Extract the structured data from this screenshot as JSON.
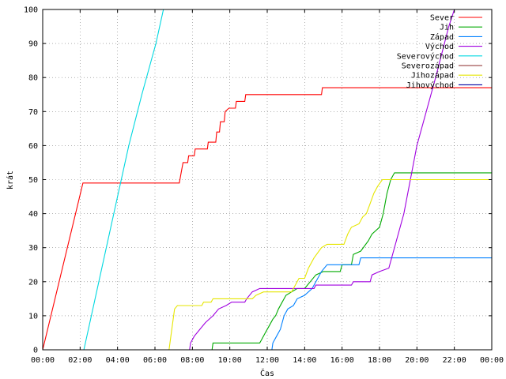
{
  "chart_data": {
    "type": "line",
    "title": "",
    "xlabel": "Čas",
    "ylabel": "krát",
    "x_ticks": [
      "00:00",
      "02:00",
      "04:00",
      "06:00",
      "08:00",
      "10:00",
      "12:00",
      "14:00",
      "16:00",
      "18:00",
      "20:00",
      "22:00",
      "00:00"
    ],
    "y_ticks": [
      "0",
      "10",
      "20",
      "30",
      "40",
      "50",
      "60",
      "70",
      "80",
      "90",
      "100"
    ],
    "xlim_hours": [
      0,
      24
    ],
    "ylim": [
      0,
      100
    ],
    "grid": true,
    "legend_position": "top-right",
    "series": [
      {
        "name": "Sever",
        "color": "#ff0000",
        "points": [
          [
            0,
            0
          ],
          [
            2.15,
            49
          ],
          [
            7.3,
            49
          ],
          [
            7.4,
            52
          ],
          [
            7.5,
            55
          ],
          [
            7.75,
            55
          ],
          [
            7.8,
            57
          ],
          [
            8.1,
            57
          ],
          [
            8.15,
            59
          ],
          [
            8.8,
            59
          ],
          [
            8.85,
            61
          ],
          [
            9.25,
            61
          ],
          [
            9.3,
            64
          ],
          [
            9.45,
            64
          ],
          [
            9.5,
            67
          ],
          [
            9.7,
            67
          ],
          [
            9.75,
            70
          ],
          [
            9.95,
            71
          ],
          [
            10.3,
            71
          ],
          [
            10.35,
            73
          ],
          [
            10.8,
            73
          ],
          [
            10.85,
            75
          ],
          [
            14.9,
            75
          ],
          [
            14.95,
            77
          ],
          [
            24,
            77
          ]
        ]
      },
      {
        "name": "Jih",
        "color": "#00aa00",
        "points": [
          [
            0,
            0
          ],
          [
            9.05,
            0
          ],
          [
            9.1,
            2
          ],
          [
            11.6,
            2
          ],
          [
            11.7,
            3
          ],
          [
            11.9,
            5
          ],
          [
            12.1,
            7
          ],
          [
            12.3,
            9
          ],
          [
            12.45,
            10
          ],
          [
            12.6,
            12
          ],
          [
            12.8,
            14
          ],
          [
            13.0,
            16
          ],
          [
            13.3,
            17
          ],
          [
            13.6,
            18
          ],
          [
            14.0,
            18
          ],
          [
            14.3,
            20
          ],
          [
            14.6,
            22
          ],
          [
            15.0,
            23
          ],
          [
            15.9,
            23
          ],
          [
            16.0,
            25
          ],
          [
            16.5,
            25
          ],
          [
            16.6,
            28
          ],
          [
            17.0,
            29
          ],
          [
            17.4,
            32
          ],
          [
            17.6,
            34
          ],
          [
            18.0,
            36
          ],
          [
            18.2,
            40
          ],
          [
            18.4,
            46
          ],
          [
            18.6,
            50
          ],
          [
            18.8,
            52
          ],
          [
            24,
            52
          ]
        ]
      },
      {
        "name": "Západ",
        "color": "#0080ff",
        "points": [
          [
            0,
            0
          ],
          [
            12.25,
            0
          ],
          [
            12.3,
            2
          ],
          [
            12.5,
            4
          ],
          [
            12.7,
            6
          ],
          [
            12.9,
            10
          ],
          [
            13.1,
            12
          ],
          [
            13.4,
            13
          ],
          [
            13.6,
            15
          ],
          [
            14.0,
            16
          ],
          [
            14.4,
            18
          ],
          [
            14.7,
            21
          ],
          [
            14.9,
            23
          ],
          [
            15.2,
            25
          ],
          [
            16.9,
            25
          ],
          [
            17.0,
            27
          ],
          [
            24,
            27
          ]
        ]
      },
      {
        "name": "Východ",
        "color": "#a000e0",
        "points": [
          [
            0,
            0
          ],
          [
            7.85,
            0
          ],
          [
            7.9,
            2
          ],
          [
            8.1,
            4
          ],
          [
            8.4,
            6
          ],
          [
            8.7,
            8
          ],
          [
            9.1,
            10
          ],
          [
            9.4,
            12
          ],
          [
            9.8,
            13
          ],
          [
            10.1,
            14
          ],
          [
            10.8,
            14
          ],
          [
            10.9,
            15
          ],
          [
            11.2,
            17
          ],
          [
            11.6,
            18
          ],
          [
            14.5,
            18
          ],
          [
            14.6,
            19
          ],
          [
            16.5,
            19
          ],
          [
            16.6,
            20
          ],
          [
            17.5,
            20
          ],
          [
            17.6,
            22
          ],
          [
            18.0,
            23
          ],
          [
            18.5,
            24
          ],
          [
            18.6,
            26
          ],
          [
            19.3,
            40
          ],
          [
            20.0,
            60
          ],
          [
            21.0,
            80
          ],
          [
            21.7,
            95
          ],
          [
            22.0,
            100
          ]
        ]
      },
      {
        "name": "Severovýchod",
        "color": "#00d8e0",
        "points": [
          [
            0,
            0
          ],
          [
            2.2,
            0
          ],
          [
            3.0,
            20
          ],
          [
            3.8,
            40
          ],
          [
            4.6,
            60
          ],
          [
            5.3,
            75
          ],
          [
            6.05,
            90
          ],
          [
            6.45,
            100
          ]
        ]
      },
      {
        "name": "Severozápad",
        "color": "#8b2a2a",
        "points": []
      },
      {
        "name": "Jihozápad",
        "color": "#e6e600",
        "points": [
          [
            0,
            0
          ],
          [
            6.75,
            0
          ],
          [
            6.9,
            6
          ],
          [
            7.05,
            12
          ],
          [
            7.2,
            13
          ],
          [
            8.5,
            13
          ],
          [
            8.6,
            14
          ],
          [
            9.0,
            14
          ],
          [
            9.1,
            15
          ],
          [
            11.2,
            15
          ],
          [
            11.4,
            16
          ],
          [
            11.8,
            17
          ],
          [
            13.3,
            17
          ],
          [
            13.5,
            19
          ],
          [
            13.7,
            21
          ],
          [
            14.0,
            21
          ],
          [
            14.2,
            24
          ],
          [
            14.5,
            27
          ],
          [
            14.9,
            30
          ],
          [
            15.2,
            31
          ],
          [
            16.1,
            31
          ],
          [
            16.3,
            34
          ],
          [
            16.5,
            36
          ],
          [
            16.9,
            37
          ],
          [
            17.1,
            39
          ],
          [
            17.3,
            40
          ],
          [
            17.5,
            43
          ],
          [
            17.7,
            46
          ],
          [
            17.9,
            48
          ],
          [
            18.15,
            50
          ],
          [
            24,
            50
          ]
        ]
      },
      {
        "name": "Jihovýchod",
        "color": "#0000a0",
        "points": []
      }
    ]
  }
}
